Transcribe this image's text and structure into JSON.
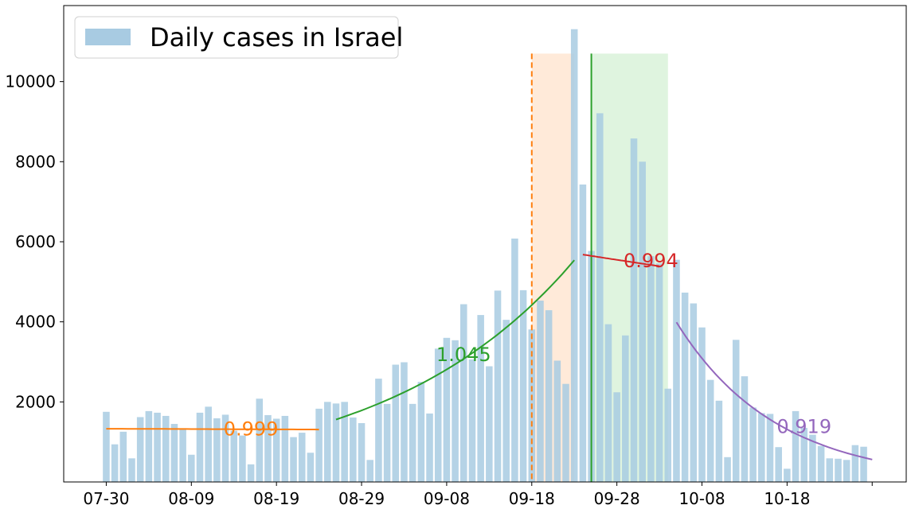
{
  "chart_data": {
    "type": "bar",
    "series": [
      {
        "name": "Daily cases in Israel",
        "color": "#a8cbe2",
        "x_start": "2020-07-30",
        "values": [
          1752,
          940,
          1255,
          590,
          1620,
          1770,
          1730,
          1650,
          1450,
          1340,
          680,
          1730,
          1880,
          1590,
          1680,
          1280,
          1160,
          440,
          2080,
          1670,
          1580,
          1650,
          1120,
          1230,
          730,
          1830,
          2000,
          1960,
          2000,
          1610,
          1470,
          550,
          2580,
          1950,
          2930,
          2990,
          1950,
          2500,
          1710,
          3330,
          3600,
          3540,
          4440,
          3060,
          4170,
          2890,
          4780,
          4050,
          6080,
          4790,
          3810,
          4530,
          4290,
          3030,
          2450,
          11310,
          7430,
          5770,
          9210,
          3940,
          2240,
          3660,
          8580,
          8000,
          5640,
          5460,
          2330,
          5550,
          4730,
          4460,
          3860,
          2550,
          2030,
          620,
          3550,
          2640,
          1860,
          1720,
          1700,
          870,
          330,
          1770,
          1350,
          1180,
          900,
          590,
          580,
          550,
          920,
          880
        ]
      }
    ],
    "fits": [
      {
        "label": "0.999",
        "color": "#ff7f0e",
        "start": "2020-07-30",
        "end": "2020-08-24",
        "y_start": 1330,
        "y_end": 1310
      },
      {
        "label": "1.045",
        "color": "#2ca02c",
        "start": "2020-08-26",
        "end": "2020-09-23",
        "y_start": 1560,
        "y_end": 5540
      },
      {
        "label": "0.994",
        "color": "#d62728",
        "start": "2020-09-24",
        "end": "2020-10-03",
        "y_start": 5680,
        "y_end": 5390
      },
      {
        "label": "0.919",
        "color": "#9467bd",
        "start": "2020-10-05",
        "end": "2020-10-28",
        "y_start": 3990,
        "y_end": 560
      }
    ],
    "fit_label_positions": [
      {
        "x": "2020-08-16",
        "y": 1320
      },
      {
        "x": "2020-09-10",
        "y": 3180
      },
      {
        "x": "2020-10-02",
        "y": 5520
      },
      {
        "x": "2020-10-20",
        "y": 1380
      }
    ],
    "spans": [
      {
        "start": "2020-09-18",
        "end": "2020-09-23",
        "color": "#ffe6d2",
        "opacity": 0.85
      },
      {
        "start": "2020-09-25",
        "end": "2020-10-04",
        "color": "#d4f0d4",
        "opacity": 0.75
      }
    ],
    "vlines": [
      {
        "x": "2020-09-18",
        "color": "#ff7f0e",
        "style": "dashed"
      },
      {
        "x": "2020-09-25",
        "color": "#2ca02c",
        "style": "solid"
      }
    ],
    "x_ticks": [
      "07-30",
      "08-09",
      "08-19",
      "08-29",
      "09-08",
      "09-18",
      "09-28",
      "10-08",
      "10-18",
      ""
    ],
    "y_ticks": [
      2000,
      4000,
      6000,
      8000,
      10000
    ],
    "ylim": [
      0,
      11900
    ],
    "xlim": [
      "2020-07-25",
      "2020-11-01"
    ],
    "legend": {
      "label": "Daily cases in Israel",
      "position": "upper-left"
    },
    "span_top": 10700
  }
}
